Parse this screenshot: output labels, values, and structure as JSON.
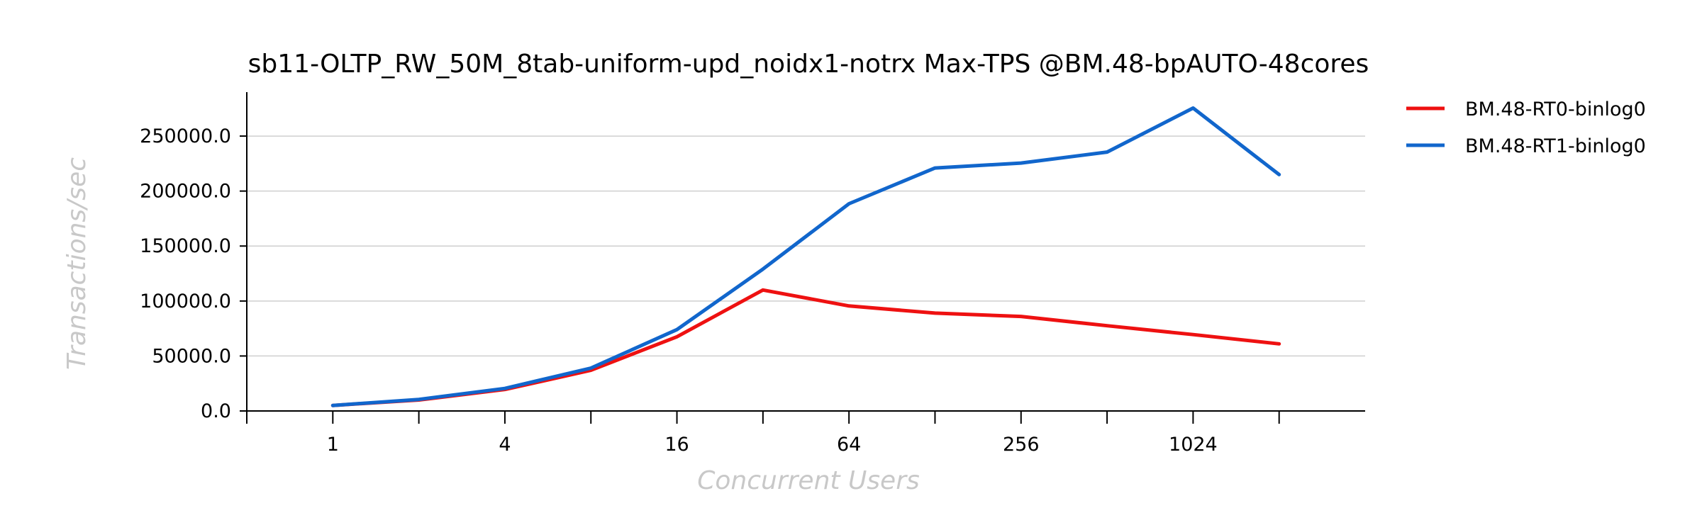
{
  "chart_data": {
    "type": "line",
    "title": "sb11-OLTP_RW_50M_8tab-uniform-upd_noidx1-notrx Max-TPS @BM.48-bpAUTO-48cores",
    "xlabel": "Concurrent Users",
    "ylabel": "Transactions/sec",
    "x": [
      1,
      2,
      4,
      8,
      16,
      32,
      64,
      128,
      256,
      512,
      1024,
      2048
    ],
    "x_tick_values": [
      1,
      4,
      16,
      64,
      256,
      1024
    ],
    "x_tick_labels": [
      "1",
      "4",
      "16",
      "64",
      "256",
      "1024"
    ],
    "x_scale": "log2",
    "x_range": [
      0.5,
      4096
    ],
    "ylim": [
      0,
      290000
    ],
    "y_tick_values": [
      0,
      50000,
      100000,
      150000,
      200000,
      250000
    ],
    "y_tick_labels": [
      "0.0",
      "50000.0",
      "100000.0",
      "150000.0",
      "200000.0",
      "250000.0"
    ],
    "grid": true,
    "legend_position": "right",
    "series": [
      {
        "name": "BM.48-RT0-binlog0",
        "color": "#ee1111",
        "values": [
          5000,
          10000,
          19500,
          37000,
          67500,
          110000,
          95500,
          89000,
          86000,
          77500,
          69500,
          61000
        ]
      },
      {
        "name": "BM.48-RT1-binlog0",
        "color": "#1166cc",
        "values": [
          5000,
          10500,
          20500,
          39000,
          74000,
          129000,
          188500,
          221000,
          225500,
          235500,
          275500,
          215000
        ]
      }
    ]
  }
}
